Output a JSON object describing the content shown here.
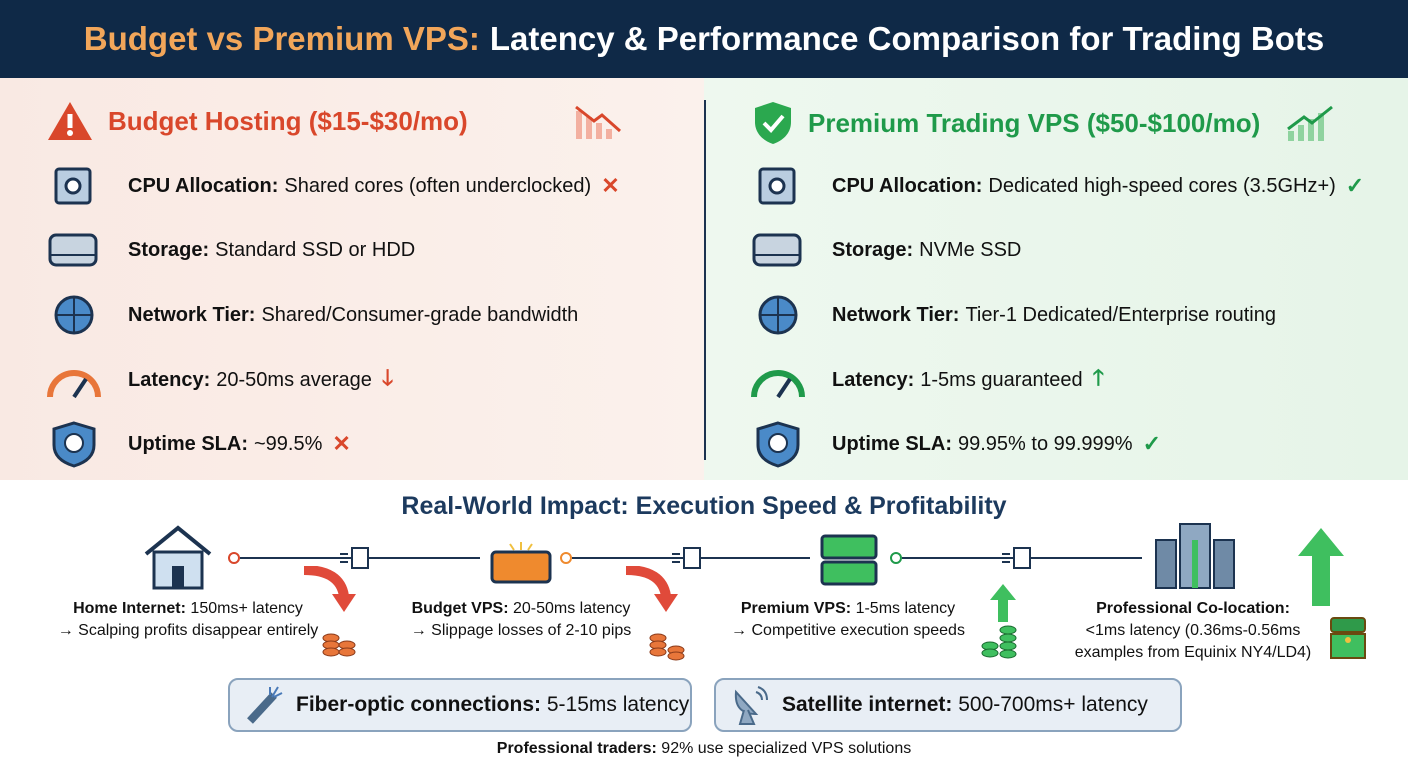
{
  "header": {
    "title_accent": "Budget vs Premium VPS:",
    "title_rest": "Latency & Performance Comparison for Trading Bots"
  },
  "budget": {
    "heading": "Budget Hosting ($15-$30/mo)",
    "rows": [
      {
        "label": "CPU Allocation:",
        "value": "Shared cores (often underclocked)",
        "mark": "✕"
      },
      {
        "label": "Storage:",
        "value": "Standard SSD or HDD",
        "mark": ""
      },
      {
        "label": "Network Tier:",
        "value": "Shared/Consumer-grade bandwidth",
        "mark": ""
      },
      {
        "label": "Latency:",
        "value": "20-50ms average",
        "mark": "🡓"
      },
      {
        "label": "Uptime SLA:",
        "value": "~99.5%",
        "mark": "✕"
      }
    ]
  },
  "premium": {
    "heading": "Premium Trading VPS ($50-$100/mo)",
    "rows": [
      {
        "label": "CPU Allocation:",
        "value": "Dedicated high-speed cores (3.5GHz+)",
        "mark": "✓"
      },
      {
        "label": "Storage:",
        "value": "NVMe SSD",
        "mark": ""
      },
      {
        "label": "Network Tier:",
        "value": "Tier-1 Dedicated/Enterprise routing",
        "mark": ""
      },
      {
        "label": "Latency:",
        "value": "1-5ms guaranteed",
        "mark": "🡑"
      },
      {
        "label": "Uptime SLA:",
        "value": "99.95% to 99.999%",
        "mark": "✓"
      }
    ]
  },
  "impact": {
    "title": "Real-World Impact: Execution Speed & Profitability",
    "stages": [
      {
        "label": "Home Internet:",
        "value": "150ms+ latency",
        "note": "→ Scalping profits disappear entirely"
      },
      {
        "label": "Budget VPS:",
        "value": "20-50ms latency",
        "note": "→ Slippage losses of 2-10 pips"
      },
      {
        "label": "Premium VPS:",
        "value": "1-5ms latency",
        "note": "→ Competitive execution speeds"
      },
      {
        "label": "Professional Co-location:",
        "value": "<1ms latency (0.36ms-0.56ms",
        "note": "examples from Equinix NY4/LD4)"
      }
    ]
  },
  "boxes": [
    {
      "label": "Fiber-optic connections:",
      "value": "5-15ms latency"
    },
    {
      "label": "Satellite internet:",
      "value": "500-700ms+ latency"
    }
  ],
  "footer": {
    "label": "Professional traders:",
    "value": "92% use specialized VPS solutions"
  },
  "colors": {
    "navy": "#0f2947",
    "accent": "#f2a65a",
    "red": "#d9472b",
    "green": "#1f9a4a"
  }
}
